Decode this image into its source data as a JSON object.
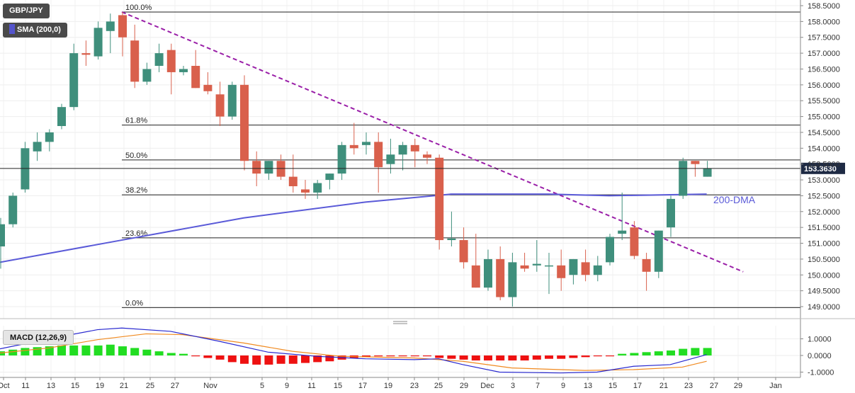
{
  "symbol_label": "GBP/JPY",
  "sma_label": "SMA (200,0)",
  "macd_label": "MACD (12,26,9)",
  "dma_label": "200-DMA",
  "last_price": "153.3630",
  "colors": {
    "bull": "#3f8f7c",
    "bear": "#d9604c",
    "sma": "#5a5ad8",
    "trendline": "#9a1fa8",
    "macd_line": "#2a2ad0",
    "signal_line": "#f08a20",
    "hist_pos": "#22dd22",
    "hist_neg": "#ee1111",
    "price_badge": "#1e2a44"
  },
  "chart_data": [
    {
      "type": "candlestick",
      "title": "GBP/JPY",
      "y_ticks": [
        "158.5000",
        "158.0000",
        "157.5000",
        "157.0000",
        "156.5000",
        "156.0000",
        "155.5000",
        "155.0000",
        "154.5000",
        "154.0000",
        "153.5000",
        "153.0000",
        "152.5000",
        "152.0000",
        "151.5000",
        "151.0000",
        "150.5000",
        "150.0000",
        "149.5000",
        "149.0000"
      ],
      "ylim": [
        148.86,
        158.62
      ],
      "x_ticks": [
        "Oct",
        "11",
        "13",
        "15",
        "19",
        "21",
        "25",
        "27",
        "Nov",
        "5",
        "9",
        "11",
        "15",
        "17",
        "19",
        "23",
        "25",
        "29",
        "Dec",
        "3",
        "7",
        "9",
        "13",
        "15",
        "17",
        "21",
        "23",
        "27",
        "29",
        "Jan"
      ],
      "fibonacci": [
        {
          "label": "100.0%",
          "value": 158.3
        },
        {
          "label": "61.8%",
          "value": 154.73
        },
        {
          "label": "50.0%",
          "value": 153.63
        },
        {
          "label": "38.2%",
          "value": 152.53
        },
        {
          "label": "23.6%",
          "value": 151.17
        },
        {
          "label": "0.0%",
          "value": 148.97
        }
      ],
      "last_price_line": 153.363,
      "candles": [
        {
          "o": 150.9,
          "h": 151.8,
          "l": 150.2,
          "c": 151.6
        },
        {
          "o": 151.6,
          "h": 152.6,
          "l": 151.5,
          "c": 152.5
        },
        {
          "o": 152.7,
          "h": 154.2,
          "l": 152.6,
          "c": 154.0
        },
        {
          "o": 153.9,
          "h": 154.5,
          "l": 153.6,
          "c": 154.2
        },
        {
          "o": 154.2,
          "h": 154.6,
          "l": 153.9,
          "c": 154.5
        },
        {
          "o": 154.7,
          "h": 155.4,
          "l": 154.6,
          "c": 155.3
        },
        {
          "o": 155.3,
          "h": 157.3,
          "l": 155.2,
          "c": 157.0
        },
        {
          "o": 157.0,
          "h": 157.4,
          "l": 156.6,
          "c": 156.95
        },
        {
          "o": 156.9,
          "h": 158.0,
          "l": 156.8,
          "c": 157.8
        },
        {
          "o": 157.7,
          "h": 158.25,
          "l": 157.0,
          "c": 158.0
        },
        {
          "o": 158.2,
          "h": 158.3,
          "l": 156.9,
          "c": 157.5
        },
        {
          "o": 157.4,
          "h": 157.9,
          "l": 155.9,
          "c": 156.1
        },
        {
          "o": 156.1,
          "h": 156.7,
          "l": 156.0,
          "c": 156.5
        },
        {
          "o": 156.6,
          "h": 157.3,
          "l": 156.4,
          "c": 157.0
        },
        {
          "o": 157.1,
          "h": 157.3,
          "l": 155.7,
          "c": 156.4
        },
        {
          "o": 156.4,
          "h": 156.6,
          "l": 156.3,
          "c": 156.5
        },
        {
          "o": 156.6,
          "h": 157.1,
          "l": 155.9,
          "c": 155.9
        },
        {
          "o": 156.0,
          "h": 156.4,
          "l": 155.7,
          "c": 155.8
        },
        {
          "o": 155.7,
          "h": 156.1,
          "l": 154.7,
          "c": 155.0
        },
        {
          "o": 155.0,
          "h": 156.1,
          "l": 154.9,
          "c": 156.0
        },
        {
          "o": 156.0,
          "h": 156.3,
          "l": 153.3,
          "c": 153.6
        },
        {
          "o": 153.6,
          "h": 153.9,
          "l": 152.8,
          "c": 153.2
        },
        {
          "o": 153.2,
          "h": 153.6,
          "l": 153.0,
          "c": 153.6
        },
        {
          "o": 153.6,
          "h": 153.8,
          "l": 153.0,
          "c": 153.1
        },
        {
          "o": 153.1,
          "h": 153.8,
          "l": 152.6,
          "c": 152.8
        },
        {
          "o": 152.7,
          "h": 153.0,
          "l": 152.4,
          "c": 152.6
        },
        {
          "o": 152.6,
          "h": 153.0,
          "l": 152.4,
          "c": 152.9
        },
        {
          "o": 153.0,
          "h": 153.2,
          "l": 152.7,
          "c": 153.2
        },
        {
          "o": 153.2,
          "h": 154.2,
          "l": 153.0,
          "c": 154.1
        },
        {
          "o": 154.1,
          "h": 154.8,
          "l": 153.8,
          "c": 154.0
        },
        {
          "o": 154.1,
          "h": 154.5,
          "l": 153.8,
          "c": 154.2
        },
        {
          "o": 154.2,
          "h": 154.5,
          "l": 152.6,
          "c": 153.4
        },
        {
          "o": 153.5,
          "h": 154.3,
          "l": 153.2,
          "c": 153.8
        },
        {
          "o": 153.8,
          "h": 154.2,
          "l": 153.3,
          "c": 154.1
        },
        {
          "o": 154.1,
          "h": 154.3,
          "l": 153.4,
          "c": 153.9
        },
        {
          "o": 153.8,
          "h": 153.9,
          "l": 153.5,
          "c": 153.7
        },
        {
          "o": 153.7,
          "h": 153.8,
          "l": 150.8,
          "c": 151.1
        },
        {
          "o": 151.1,
          "h": 152.0,
          "l": 150.9,
          "c": 151.15
        },
        {
          "o": 151.1,
          "h": 151.5,
          "l": 150.2,
          "c": 150.4
        },
        {
          "o": 150.3,
          "h": 151.3,
          "l": 149.6,
          "c": 149.6
        },
        {
          "o": 149.6,
          "h": 150.8,
          "l": 149.5,
          "c": 150.5
        },
        {
          "o": 150.5,
          "h": 150.9,
          "l": 149.2,
          "c": 149.3
        },
        {
          "o": 149.3,
          "h": 150.7,
          "l": 149.0,
          "c": 150.4
        },
        {
          "o": 150.3,
          "h": 150.7,
          "l": 150.1,
          "c": 150.2
        },
        {
          "o": 150.3,
          "h": 151.1,
          "l": 150.1,
          "c": 150.35
        },
        {
          "o": 150.3,
          "h": 150.7,
          "l": 149.4,
          "c": 150.3
        },
        {
          "o": 150.3,
          "h": 150.8,
          "l": 149.5,
          "c": 149.9
        },
        {
          "o": 150.0,
          "h": 150.5,
          "l": 149.7,
          "c": 150.5
        },
        {
          "o": 150.4,
          "h": 150.8,
          "l": 149.8,
          "c": 150.0
        },
        {
          "o": 150.0,
          "h": 150.6,
          "l": 149.8,
          "c": 150.3
        },
        {
          "o": 150.4,
          "h": 151.3,
          "l": 150.3,
          "c": 151.2
        },
        {
          "o": 151.3,
          "h": 152.6,
          "l": 151.1,
          "c": 151.4
        },
        {
          "o": 151.5,
          "h": 151.7,
          "l": 150.5,
          "c": 150.6
        },
        {
          "o": 150.5,
          "h": 150.7,
          "l": 149.5,
          "c": 150.1
        },
        {
          "o": 150.1,
          "h": 151.4,
          "l": 149.9,
          "c": 151.4
        },
        {
          "o": 151.5,
          "h": 152.5,
          "l": 151.2,
          "c": 152.4
        },
        {
          "o": 152.5,
          "h": 153.7,
          "l": 152.4,
          "c": 153.6
        },
        {
          "o": 153.6,
          "h": 153.6,
          "l": 153.1,
          "c": 153.5
        },
        {
          "o": 153.1,
          "h": 153.6,
          "l": 153.1,
          "c": 153.36
        }
      ],
      "sma": [
        {
          "i": 0,
          "v": 150.4
        },
        {
          "i": 10,
          "v": 151.1
        },
        {
          "i": 20,
          "v": 151.8
        },
        {
          "i": 30,
          "v": 152.3
        },
        {
          "i": 37,
          "v": 152.55
        },
        {
          "i": 45,
          "v": 152.55
        },
        {
          "i": 50,
          "v": 152.5
        },
        {
          "i": 58,
          "v": 152.55
        }
      ],
      "trendline": [
        {
          "i": 10,
          "v": 158.3
        },
        {
          "i": 61,
          "v": 150.1
        }
      ]
    },
    {
      "type": "bar",
      "title": "MACD (12,26,9)",
      "y_ticks": [
        "1.0000",
        "0.0000",
        "-1.0000"
      ],
      "ylim": [
        -1.22,
        1.7
      ],
      "macd_line": [
        {
          "i": 0,
          "v": 0.4
        },
        {
          "i": 4,
          "v": 1.0
        },
        {
          "i": 8,
          "v": 1.55
        },
        {
          "i": 10,
          "v": 1.65
        },
        {
          "i": 14,
          "v": 1.45
        },
        {
          "i": 18,
          "v": 0.85
        },
        {
          "i": 22,
          "v": 0.2
        },
        {
          "i": 26,
          "v": -0.05
        },
        {
          "i": 30,
          "v": -0.2
        },
        {
          "i": 34,
          "v": -0.25
        },
        {
          "i": 36,
          "v": -0.2
        },
        {
          "i": 38,
          "v": -0.55
        },
        {
          "i": 41,
          "v": -1.0
        },
        {
          "i": 46,
          "v": -1.05
        },
        {
          "i": 49,
          "v": -1.0
        },
        {
          "i": 52,
          "v": -0.65
        },
        {
          "i": 55,
          "v": -0.55
        },
        {
          "i": 58,
          "v": 0.05
        }
      ],
      "signal_line": [
        {
          "i": 0,
          "v": 0.15
        },
        {
          "i": 4,
          "v": 0.45
        },
        {
          "i": 8,
          "v": 0.95
        },
        {
          "i": 12,
          "v": 1.3
        },
        {
          "i": 15,
          "v": 1.25
        },
        {
          "i": 20,
          "v": 0.75
        },
        {
          "i": 24,
          "v": 0.25
        },
        {
          "i": 28,
          "v": -0.05
        },
        {
          "i": 34,
          "v": -0.15
        },
        {
          "i": 38,
          "v": -0.35
        },
        {
          "i": 42,
          "v": -0.75
        },
        {
          "i": 48,
          "v": -0.9
        },
        {
          "i": 52,
          "v": -0.85
        },
        {
          "i": 56,
          "v": -0.7
        },
        {
          "i": 58,
          "v": -0.35
        }
      ],
      "histogram": [
        0.25,
        0.35,
        0.45,
        0.5,
        0.55,
        0.6,
        0.6,
        0.6,
        0.6,
        0.65,
        0.55,
        0.45,
        0.35,
        0.25,
        0.15,
        0.1,
        -0.05,
        -0.15,
        -0.25,
        -0.4,
        -0.5,
        -0.55,
        -0.55,
        -0.5,
        -0.5,
        -0.45,
        -0.4,
        -0.35,
        -0.25,
        -0.15,
        -0.1,
        -0.05,
        -0.05,
        -0.05,
        -0.05,
        -0.05,
        -0.15,
        -0.2,
        -0.25,
        -0.3,
        -0.3,
        -0.3,
        -0.3,
        -0.3,
        -0.25,
        -0.2,
        -0.2,
        -0.15,
        -0.1,
        -0.05,
        -0.05,
        0.1,
        0.15,
        0.2,
        0.25,
        0.3,
        0.4,
        0.45,
        0.45
      ]
    }
  ]
}
